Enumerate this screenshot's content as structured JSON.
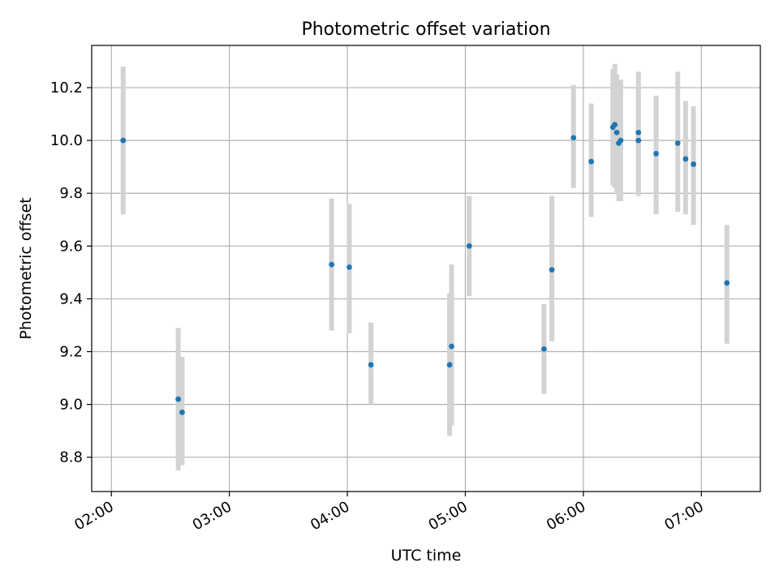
{
  "chart_data": {
    "type": "scatter",
    "title": "Photometric offset variation",
    "xlabel": "UTC time",
    "ylabel": "Photometric offset",
    "grid": true,
    "xaxis_format": "HH:MM (UTC)",
    "xlim": [
      "01:50",
      "07:30"
    ],
    "ylim": [
      8.67,
      10.36
    ],
    "xticks": [
      "02:00",
      "03:00",
      "04:00",
      "05:00",
      "06:00",
      "07:00"
    ],
    "yticks": [
      8.8,
      9.0,
      9.2,
      9.4,
      9.6,
      9.8,
      10.0,
      10.2
    ],
    "ytick_labels": [
      "8.8",
      "9.0",
      "9.2",
      "9.4",
      "9.6",
      "9.8",
      "10.0",
      "10.2"
    ],
    "colors": {
      "marker": "#1f77b4",
      "errorbar": "#d3d3d3",
      "grid": "#b0b0b0"
    },
    "series": [
      {
        "marker": "dot",
        "points": [
          {
            "time": "02:06",
            "y": 10.0,
            "ymin": 9.72,
            "ymax": 10.28
          },
          {
            "time": "02:34",
            "y": 9.02,
            "ymin": 8.75,
            "ymax": 9.29
          },
          {
            "time": "02:36",
            "y": 8.97,
            "ymin": 8.77,
            "ymax": 9.18
          },
          {
            "time": "03:52",
            "y": 9.53,
            "ymin": 9.28,
            "ymax": 9.78
          },
          {
            "time": "04:01",
            "y": 9.52,
            "ymin": 9.27,
            "ymax": 9.76
          },
          {
            "time": "04:12",
            "y": 9.15,
            "ymin": 9.0,
            "ymax": 9.31
          },
          {
            "time": "04:52",
            "y": 9.15,
            "ymin": 8.88,
            "ymax": 9.42
          },
          {
            "time": "04:53",
            "y": 9.22,
            "ymin": 8.92,
            "ymax": 9.53
          },
          {
            "time": "05:02",
            "y": 9.6,
            "ymin": 9.41,
            "ymax": 9.79
          },
          {
            "time": "05:40",
            "y": 9.21,
            "ymin": 9.04,
            "ymax": 9.38
          },
          {
            "time": "05:44",
            "y": 9.51,
            "ymin": 9.24,
            "ymax": 9.79
          },
          {
            "time": "05:55",
            "y": 10.01,
            "ymin": 9.82,
            "ymax": 10.21
          },
          {
            "time": "06:04",
            "y": 9.92,
            "ymin": 9.71,
            "ymax": 10.14
          },
          {
            "time": "06:15",
            "y": 10.05,
            "ymin": 9.83,
            "ymax": 10.27
          },
          {
            "time": "06:16",
            "y": 10.06,
            "ymin": 9.82,
            "ymax": 10.29
          },
          {
            "time": "06:17",
            "y": 10.03,
            "ymin": 9.8,
            "ymax": 10.25
          },
          {
            "time": "06:18",
            "y": 9.99,
            "ymin": 9.77,
            "ymax": 10.21
          },
          {
            "time": "06:19",
            "y": 10.0,
            "ymin": 9.77,
            "ymax": 10.23
          },
          {
            "time": "06:28",
            "y": 10.03,
            "ymin": 9.8,
            "ymax": 10.26
          },
          {
            "time": "06:28",
            "y": 10.0,
            "ymin": 9.79,
            "ymax": 10.21
          },
          {
            "time": "06:37",
            "y": 9.95,
            "ymin": 9.72,
            "ymax": 10.17
          },
          {
            "time": "06:48",
            "y": 9.99,
            "ymin": 9.73,
            "ymax": 10.26
          },
          {
            "time": "06:52",
            "y": 9.93,
            "ymin": 9.72,
            "ymax": 10.15
          },
          {
            "time": "06:56",
            "y": 9.91,
            "ymin": 9.68,
            "ymax": 10.13
          },
          {
            "time": "07:13",
            "y": 9.46,
            "ymin": 9.23,
            "ymax": 9.68
          }
        ]
      }
    ]
  }
}
